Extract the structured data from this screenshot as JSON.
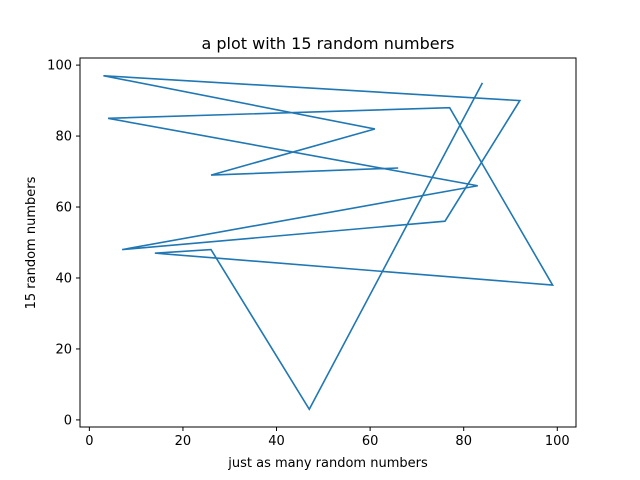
{
  "chart_data": {
    "type": "line",
    "title": "a plot with 15 random numbers",
    "xlabel": "just as many random numbers",
    "ylabel": "15 random numbers",
    "xlim": [
      -2,
      104
    ],
    "ylim": [
      -2,
      102
    ],
    "xticks": [
      0,
      20,
      40,
      60,
      80,
      100
    ],
    "yticks": [
      0,
      20,
      40,
      60,
      80,
      100
    ],
    "grid": false,
    "legend": "none",
    "series": [
      {
        "color": "#1f77b4",
        "x": [
          84,
          47,
          26,
          14,
          99,
          77,
          4,
          83,
          7,
          76,
          92,
          3,
          61,
          26,
          66
        ],
        "y": [
          95,
          3,
          48,
          47,
          38,
          88,
          85,
          66,
          48,
          56,
          90,
          97,
          82,
          69,
          71
        ]
      }
    ]
  }
}
